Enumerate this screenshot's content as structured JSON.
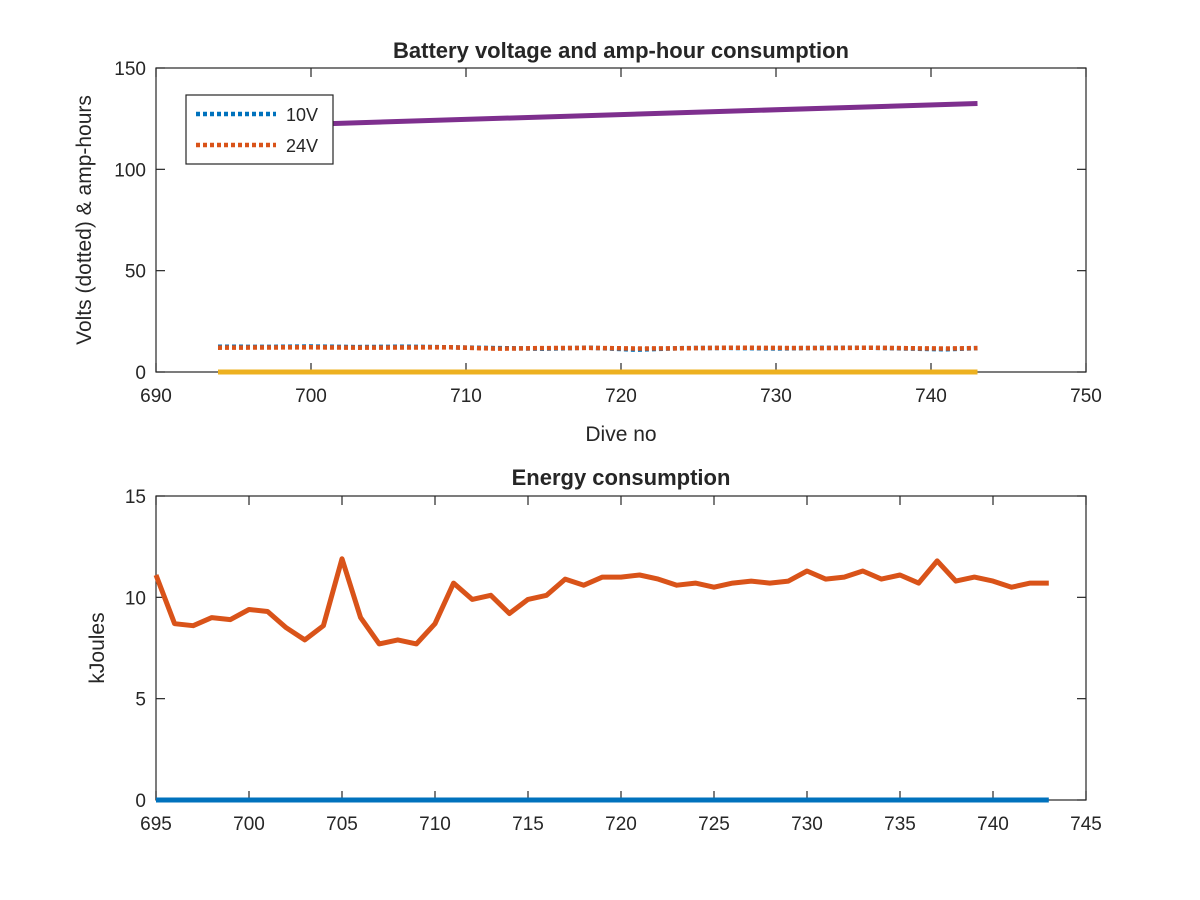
{
  "chart_data": [
    {
      "type": "line",
      "title": "Battery voltage and amp-hour consumption",
      "xlabel": "Dive no",
      "ylabel": "Volts (dotted) & amp-hours",
      "xlim": [
        690,
        750
      ],
      "ylim": [
        0,
        150
      ],
      "xticks": [
        690,
        700,
        710,
        720,
        730,
        740,
        750
      ],
      "yticks": [
        0,
        50,
        100,
        150
      ],
      "grid": false,
      "legend_position": "top-left",
      "series": [
        {
          "name": "10V",
          "style": "dotted",
          "color": "#0072BD",
          "x": [
            694,
            697,
            700,
            703,
            706,
            709,
            712,
            715,
            718,
            721,
            724,
            727,
            730,
            733,
            736,
            739,
            741,
            743
          ],
          "y": [
            12.5,
            12.4,
            12.6,
            12.3,
            12.5,
            12.2,
            11.8,
            11.5,
            12.0,
            11.0,
            11.8,
            11.9,
            11.6,
            11.9,
            12.0,
            11.5,
            11.2,
            11.8
          ]
        },
        {
          "name": "24V",
          "style": "dotted",
          "color": "#D95319",
          "x": [
            694,
            697,
            700,
            703,
            706,
            709,
            712,
            715,
            718,
            721,
            724,
            727,
            730,
            733,
            736,
            739,
            741,
            743
          ],
          "y": [
            12.0,
            12.1,
            12.2,
            12.0,
            12.1,
            12.2,
            11.5,
            11.8,
            11.9,
            11.6,
            11.7,
            12.0,
            11.9,
            11.8,
            12.0,
            11.7,
            11.6,
            11.8
          ]
        },
        {
          "style": "solid",
          "color": "#7E2F8E",
          "x": [
            701,
            743
          ],
          "y": [
            122.5,
            132.5
          ]
        },
        {
          "style": "solid",
          "color": "#EDB120",
          "x": [
            694,
            743
          ],
          "y": [
            0,
            0
          ]
        }
      ]
    },
    {
      "type": "line",
      "title": "Energy consumption",
      "xlabel": "",
      "ylabel": "kJoules",
      "xlim": [
        695,
        745
      ],
      "ylim": [
        0,
        15
      ],
      "xticks": [
        695,
        700,
        705,
        710,
        715,
        720,
        725,
        730,
        735,
        740,
        745
      ],
      "yticks": [
        0,
        5,
        10,
        15
      ],
      "grid": false,
      "series": [
        {
          "style": "solid",
          "color": "#D95319",
          "x": [
            695,
            696,
            697,
            698,
            699,
            700,
            701,
            702,
            703,
            704,
            705,
            706,
            707,
            708,
            709,
            710,
            711,
            712,
            713,
            714,
            715,
            716,
            717,
            718,
            719,
            720,
            721,
            722,
            723,
            724,
            725,
            726,
            727,
            728,
            729,
            730,
            731,
            732,
            733,
            734,
            735,
            736,
            737,
            738,
            739,
            740,
            741,
            742,
            743
          ],
          "y": [
            11.1,
            8.7,
            8.6,
            9.0,
            8.9,
            9.4,
            9.3,
            8.5,
            7.9,
            8.6,
            11.9,
            9.0,
            7.7,
            7.9,
            7.7,
            8.7,
            10.7,
            9.9,
            10.1,
            9.2,
            9.9,
            10.1,
            10.9,
            10.6,
            11.0,
            11.0,
            11.1,
            10.9,
            10.6,
            10.7,
            10.5,
            10.7,
            10.8,
            10.7,
            10.8,
            11.3,
            10.9,
            11.0,
            11.3,
            10.9,
            11.1,
            10.7,
            11.8,
            10.8,
            11.0,
            10.8,
            10.5,
            10.7,
            10.7
          ]
        },
        {
          "style": "solid",
          "color": "#0072BD",
          "x": [
            695,
            743
          ],
          "y": [
            0,
            0
          ]
        }
      ]
    }
  ]
}
